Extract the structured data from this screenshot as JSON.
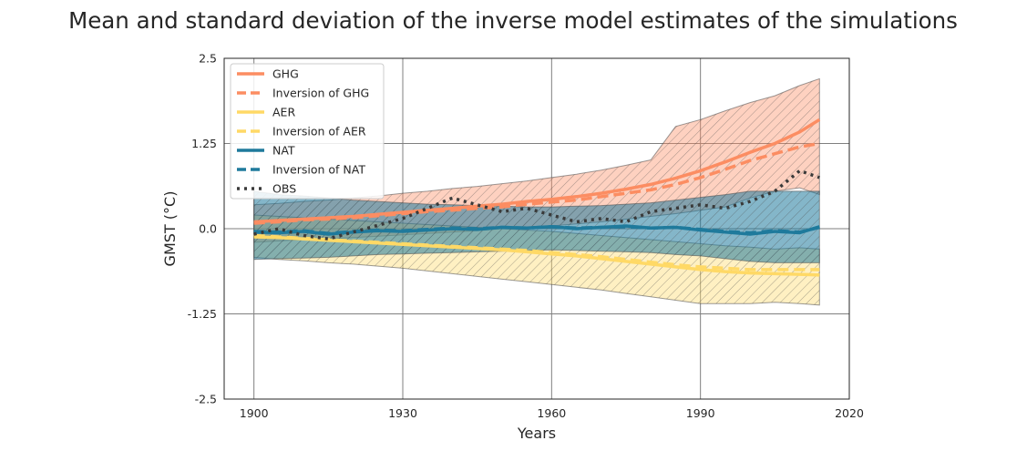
{
  "chart_data": {
    "type": "line",
    "title": "Mean and standard deviation of the inverse model estimates of the simulations",
    "xlabel": "Years",
    "ylabel": "GMST (°C)",
    "xlim": [
      1894,
      2020
    ],
    "ylim": [
      -2.5,
      2.5
    ],
    "xticks": [
      1900,
      1930,
      1960,
      1990,
      2020
    ],
    "yticks": [
      2.5,
      1.25,
      0.0,
      -1.25,
      -2.5
    ],
    "xtick_labels": [
      "1900",
      "1930",
      "1960",
      "1990",
      "2020"
    ],
    "ytick_labels": [
      "2.5",
      "1.25",
      "0.0",
      "-1.25",
      "-2.5"
    ],
    "grid": true,
    "legend_position": "top-left",
    "x": [
      1900,
      1905,
      1910,
      1915,
      1920,
      1925,
      1930,
      1935,
      1940,
      1945,
      1950,
      1955,
      1960,
      1965,
      1970,
      1975,
      1980,
      1985,
      1990,
      1995,
      2000,
      2005,
      2010,
      2014
    ],
    "series": [
      {
        "name": "GHG",
        "style": "solid",
        "color": "#fc8d62",
        "values": [
          0.1,
          0.12,
          0.14,
          0.16,
          0.18,
          0.21,
          0.24,
          0.27,
          0.3,
          0.33,
          0.36,
          0.4,
          0.43,
          0.47,
          0.52,
          0.58,
          0.65,
          0.74,
          0.85,
          0.98,
          1.12,
          1.25,
          1.42,
          1.6
        ]
      },
      {
        "name": "Inversion of GHG",
        "style": "dashed",
        "color": "#fc8d62",
        "values": [
          0.08,
          0.1,
          0.13,
          0.14,
          0.16,
          0.19,
          0.22,
          0.25,
          0.27,
          0.3,
          0.32,
          0.36,
          0.39,
          0.42,
          0.47,
          0.52,
          0.57,
          0.65,
          0.75,
          0.87,
          1.0,
          1.1,
          1.2,
          1.25
        ]
      },
      {
        "name": "AER",
        "style": "solid",
        "color": "#ffd966",
        "values": [
          -0.12,
          -0.13,
          -0.15,
          -0.17,
          -0.19,
          -0.21,
          -0.23,
          -0.25,
          -0.27,
          -0.29,
          -0.31,
          -0.34,
          -0.37,
          -0.4,
          -0.44,
          -0.48,
          -0.52,
          -0.56,
          -0.6,
          -0.63,
          -0.65,
          -0.66,
          -0.67,
          -0.68
        ]
      },
      {
        "name": "Inversion of AER",
        "style": "dashed",
        "color": "#ffd966",
        "values": [
          -0.1,
          -0.12,
          -0.14,
          -0.16,
          -0.18,
          -0.2,
          -0.22,
          -0.24,
          -0.26,
          -0.28,
          -0.3,
          -0.32,
          -0.35,
          -0.38,
          -0.41,
          -0.45,
          -0.49,
          -0.53,
          -0.56,
          -0.58,
          -0.6,
          -0.6,
          -0.6,
          -0.6
        ]
      },
      {
        "name": "NAT",
        "style": "solid",
        "color": "#1f7a9c",
        "values": [
          -0.05,
          -0.06,
          -0.04,
          -0.08,
          -0.05,
          -0.03,
          -0.04,
          -0.02,
          0.0,
          -0.01,
          0.02,
          0.01,
          0.03,
          0.0,
          0.02,
          0.04,
          0.01,
          0.02,
          -0.02,
          -0.05,
          -0.08,
          -0.04,
          -0.06,
          0.03
        ]
      },
      {
        "name": "Inversion of NAT",
        "style": "dashed",
        "color": "#1f7a9c",
        "values": [
          -0.04,
          -0.05,
          -0.03,
          -0.07,
          -0.04,
          -0.02,
          -0.03,
          -0.01,
          0.01,
          0.0,
          0.02,
          0.01,
          0.03,
          0.01,
          0.02,
          0.03,
          0.01,
          0.02,
          -0.01,
          -0.04,
          -0.06,
          -0.03,
          -0.05,
          0.02
        ]
      },
      {
        "name": "OBS",
        "style": "dotted",
        "color": "#3a3a3a",
        "values": [
          -0.08,
          0.0,
          -0.1,
          -0.15,
          -0.05,
          0.05,
          0.15,
          0.3,
          0.45,
          0.35,
          0.25,
          0.3,
          0.2,
          0.1,
          0.15,
          0.1,
          0.25,
          0.3,
          0.35,
          0.3,
          0.4,
          0.55,
          0.85,
          0.75
        ]
      }
    ],
    "bands": [
      {
        "name": "GHG ± std",
        "color": "#fc8d62",
        "fill_opacity": 0.4,
        "hatched": true,
        "upper": [
          0.35,
          0.37,
          0.4,
          0.42,
          0.45,
          0.48,
          0.52,
          0.55,
          0.59,
          0.62,
          0.66,
          0.7,
          0.75,
          0.8,
          0.86,
          0.93,
          1.01,
          1.5,
          1.6,
          1.73,
          1.85,
          1.95,
          2.1,
          2.2
        ],
        "lower": [
          -0.2,
          -0.18,
          -0.16,
          -0.15,
          -0.13,
          -0.11,
          -0.09,
          -0.07,
          -0.05,
          -0.03,
          0.0,
          0.02,
          0.04,
          0.07,
          0.1,
          0.14,
          0.18,
          0.22,
          0.27,
          0.32,
          0.45,
          0.55,
          0.6,
          0.5
        ]
      },
      {
        "name": "AER ± std",
        "color": "#ffd966",
        "fill_opacity": 0.4,
        "hatched": true,
        "upper": [
          0.2,
          0.18,
          0.16,
          0.14,
          0.12,
          0.1,
          0.08,
          0.06,
          0.04,
          0.02,
          0.0,
          -0.02,
          -0.04,
          -0.07,
          -0.1,
          -0.13,
          -0.16,
          -0.19,
          -0.22,
          -0.25,
          -0.27,
          -0.3,
          -0.28,
          -0.3
        ],
        "lower": [
          -0.42,
          -0.45,
          -0.47,
          -0.5,
          -0.52,
          -0.55,
          -0.58,
          -0.62,
          -0.66,
          -0.7,
          -0.74,
          -0.78,
          -0.82,
          -0.86,
          -0.9,
          -0.95,
          -1.0,
          -1.05,
          -1.1,
          -1.1,
          -1.1,
          -1.08,
          -1.1,
          -1.12
        ]
      },
      {
        "name": "NAT ± std",
        "color": "#1f7a9c",
        "fill_opacity": 0.55,
        "hatched": true,
        "upper": [
          0.55,
          0.5,
          0.48,
          0.45,
          0.42,
          0.4,
          0.38,
          0.36,
          0.35,
          0.34,
          0.33,
          0.32,
          0.32,
          0.33,
          0.34,
          0.36,
          0.38,
          0.42,
          0.46,
          0.5,
          0.55,
          0.55,
          0.55,
          0.55
        ],
        "lower": [
          -0.45,
          -0.44,
          -0.43,
          -0.42,
          -0.4,
          -0.38,
          -0.37,
          -0.36,
          -0.35,
          -0.34,
          -0.33,
          -0.32,
          -0.31,
          -0.32,
          -0.33,
          -0.34,
          -0.35,
          -0.38,
          -0.4,
          -0.44,
          -0.48,
          -0.5,
          -0.5,
          -0.5
        ]
      }
    ]
  }
}
